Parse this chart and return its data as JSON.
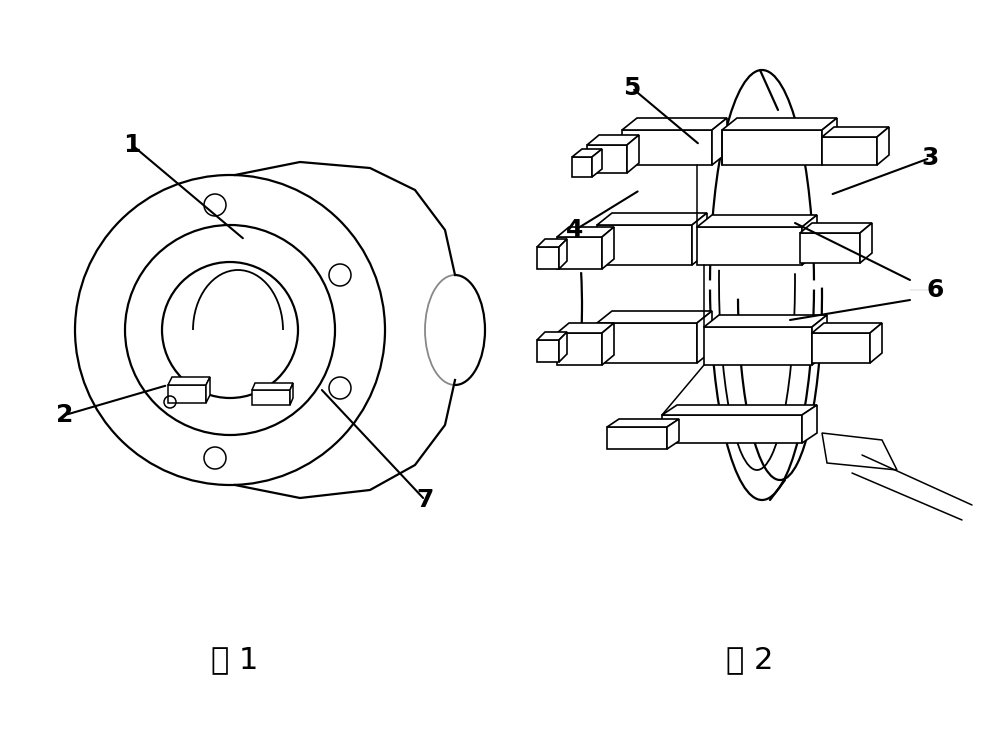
{
  "bg_color": "#ffffff",
  "line_color": "#000000",
  "fig1_label": "图 1",
  "fig2_label": "图 2",
  "annotation_fontsize": 18,
  "caption_fontsize": 22,
  "fig_width": 10.0,
  "fig_height": 7.47
}
